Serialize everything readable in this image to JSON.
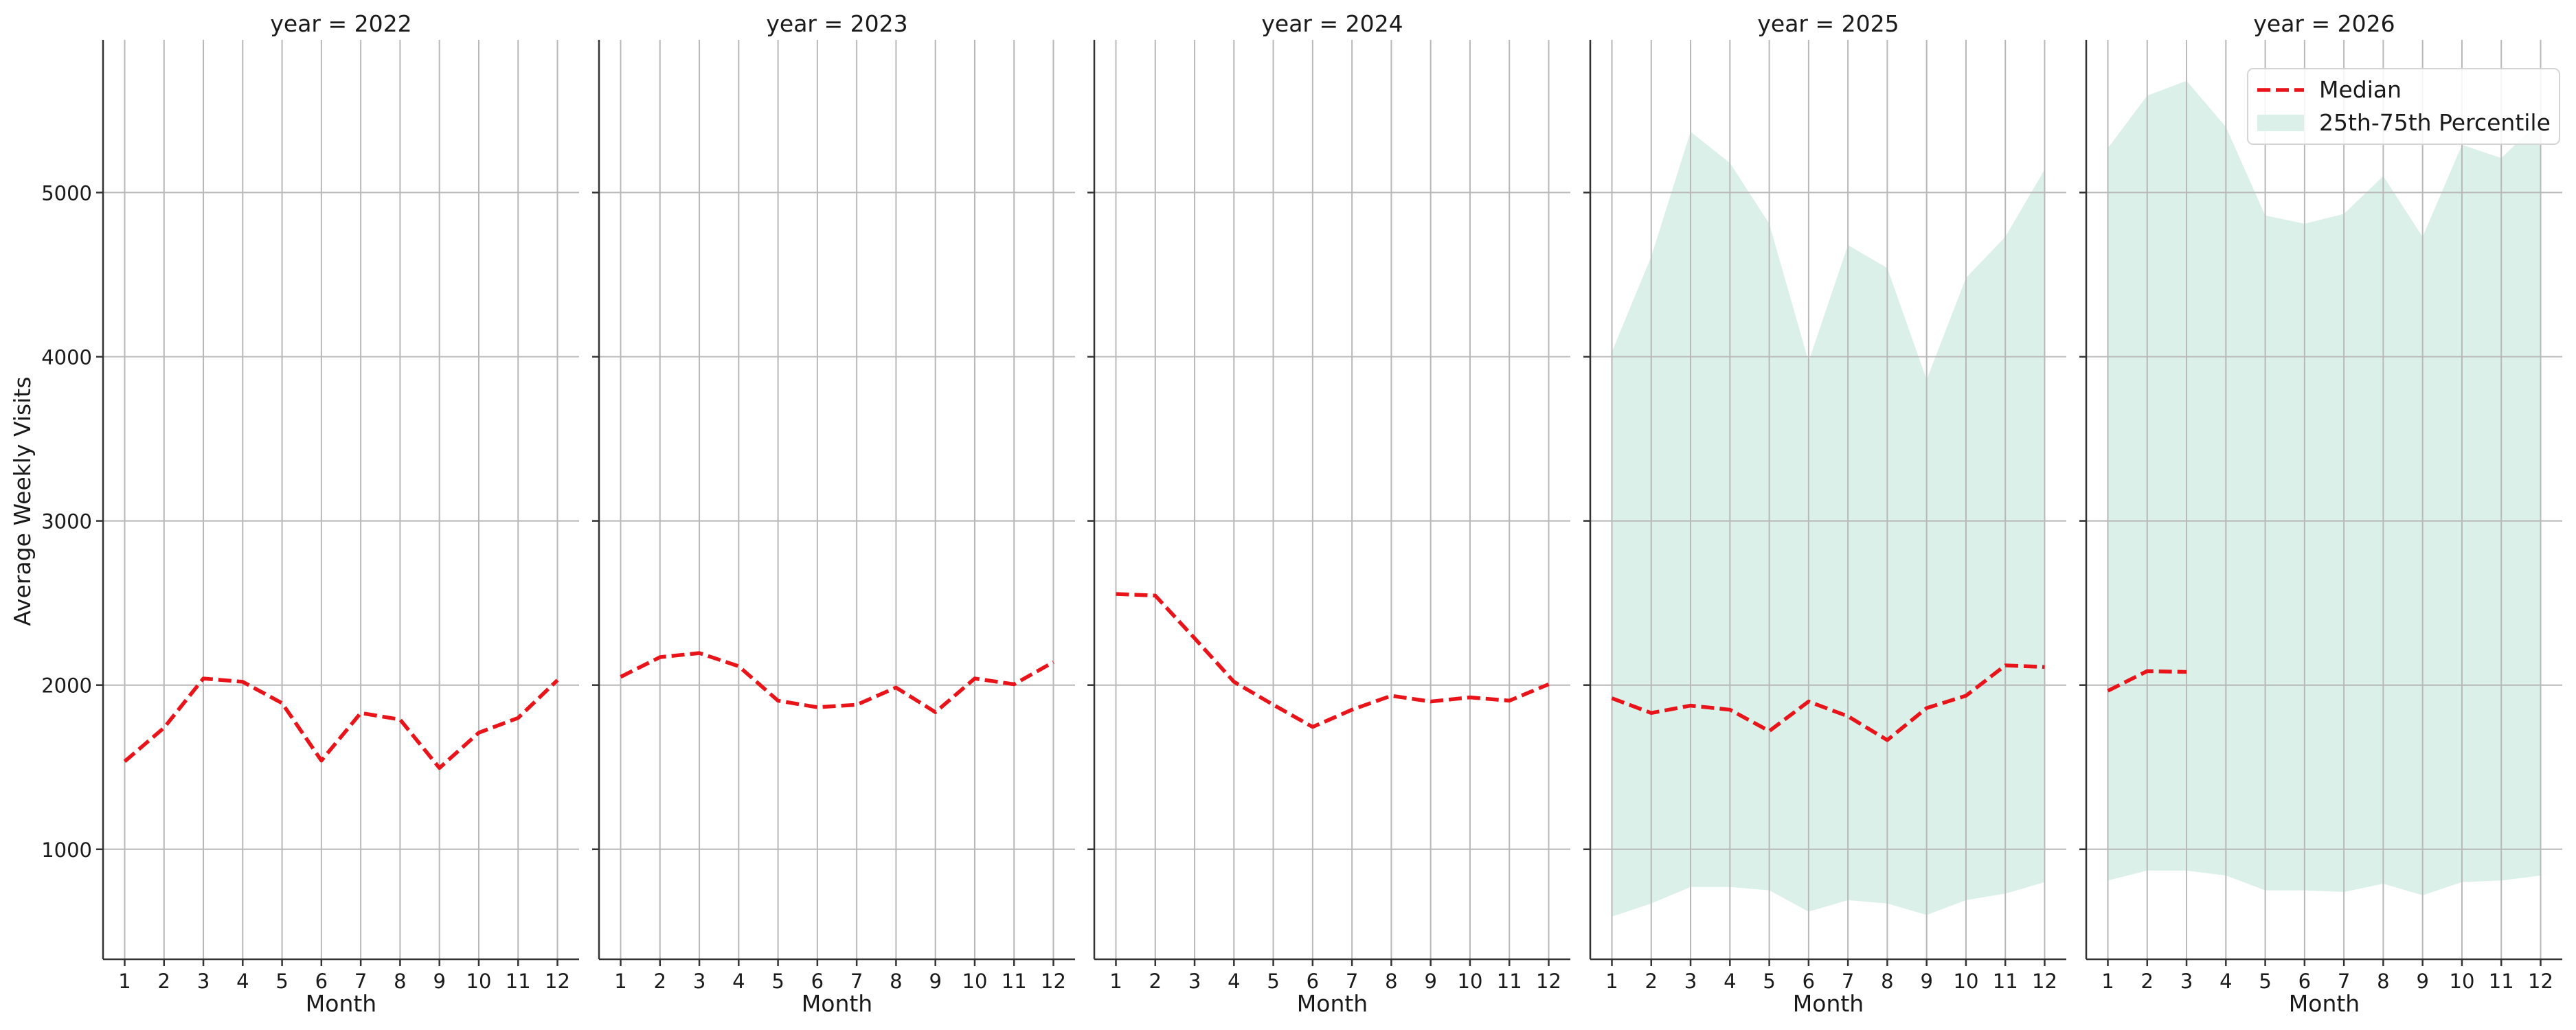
{
  "chart_data": {
    "type": "line",
    "layout": "facet-grid",
    "facet_variable": "year",
    "ylabel": "Average Weekly Visits",
    "ylim": [
      330,
      5930
    ],
    "yticks": [
      1000,
      2000,
      3000,
      4000,
      5000
    ],
    "xlim": [
      0.45,
      12.55
    ],
    "grid": true,
    "legend": {
      "position": "top-right",
      "entries": [
        "Median",
        "25th-75th Percentile"
      ]
    },
    "colors": {
      "median": "#e8141a",
      "band": "#dbf0e9",
      "grid": "#b8b8b8",
      "axis": "#333333"
    },
    "panels": [
      {
        "title": "year = 2022",
        "xlabel": "Month",
        "months": [
          1,
          2,
          3,
          4,
          5,
          6,
          7,
          8,
          9,
          10,
          11,
          12
        ],
        "median": [
          1535,
          1740,
          2040,
          2020,
          1890,
          1540,
          1830,
          1790,
          1495,
          1710,
          1800,
          2030
        ],
        "p25": null,
        "p75": null
      },
      {
        "title": "year = 2023",
        "xlabel": "Month",
        "months": [
          1,
          2,
          3,
          4,
          5,
          6,
          7,
          8,
          9,
          10,
          11,
          12
        ],
        "median": [
          2050,
          2170,
          2195,
          2115,
          1905,
          1865,
          1880,
          1985,
          1835,
          2040,
          2005,
          2140
        ],
        "p25": null,
        "p75": null
      },
      {
        "title": "year = 2024",
        "xlabel": "Month",
        "months": [
          1,
          2,
          3,
          4,
          5,
          6,
          7,
          8,
          9,
          10,
          11,
          12
        ],
        "median": [
          2555,
          2545,
          2285,
          2020,
          1880,
          1745,
          1850,
          1935,
          1900,
          1925,
          1905,
          2005
        ],
        "p25": null,
        "p75": null
      },
      {
        "title": "year = 2025",
        "xlabel": "Month",
        "months": [
          1,
          2,
          3,
          4,
          5,
          6,
          7,
          8,
          9,
          10,
          11,
          12
        ],
        "median": [
          1920,
          1830,
          1875,
          1850,
          1720,
          1900,
          1810,
          1665,
          1860,
          1935,
          2120,
          2110
        ],
        "p25": [
          590,
          670,
          770,
          770,
          750,
          620,
          690,
          670,
          600,
          690,
          730,
          800
        ],
        "p75": [
          4030,
          4610,
          5370,
          5180,
          4810,
          3970,
          4680,
          4540,
          3860,
          4480,
          4730,
          5140
        ]
      },
      {
        "title": "year = 2026",
        "xlabel": "Month",
        "months": [
          1,
          2,
          3,
          4,
          5,
          6,
          7,
          8,
          9,
          10,
          11,
          12
        ],
        "median": [
          1965,
          2085,
          2080,
          null,
          null,
          null,
          null,
          null,
          null,
          null,
          null,
          null
        ],
        "p25": [
          810,
          870,
          870,
          840,
          750,
          750,
          740,
          790,
          720,
          800,
          810,
          840
        ],
        "p75": [
          5270,
          5590,
          5680,
          5400,
          4860,
          4810,
          4870,
          5100,
          4730,
          5290,
          5210,
          5440
        ]
      }
    ]
  }
}
